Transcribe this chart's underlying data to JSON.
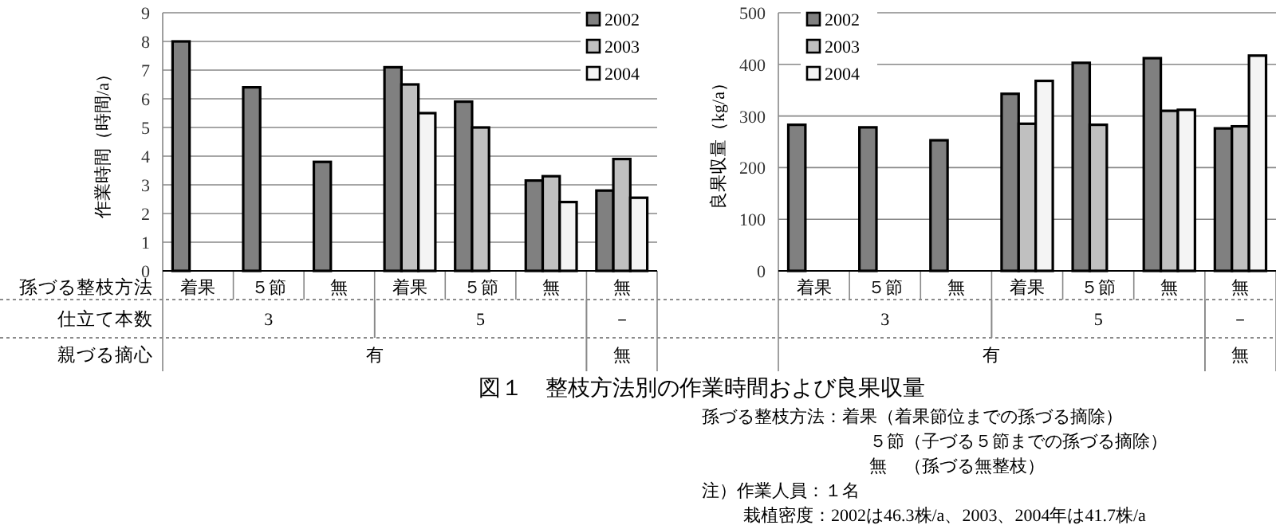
{
  "chart_data": [
    {
      "type": "bar",
      "title": "図１　整枝方法別の作業時間および良果収量",
      "ylabel": "作業時間（時間/a）",
      "xlabel": "孫づる整枝方法",
      "categories": [
        "着果",
        "５節",
        "無",
        "着果",
        "５節",
        "無",
        "無"
      ],
      "series": [
        {
          "name": "2002",
          "color": "#808080",
          "values": [
            8.0,
            6.4,
            3.8,
            7.1,
            5.9,
            3.15,
            2.8
          ]
        },
        {
          "name": "2003",
          "color": "#c0c0c0",
          "values": [
            null,
            null,
            null,
            6.5,
            5.0,
            3.3,
            3.9
          ]
        },
        {
          "name": "2004",
          "color": "#f4f4f4",
          "values": [
            null,
            null,
            null,
            5.5,
            null,
            2.4,
            2.55
          ]
        }
      ],
      "ylim": [
        0,
        9
      ],
      "yticks": [
        0,
        1,
        2,
        3,
        4,
        5,
        6,
        7,
        8,
        9
      ],
      "grid": "y",
      "legend": "top right",
      "annotations": [
        "仕立て本数",
        "親づる摘心",
        "3",
        "5",
        "－",
        "有",
        "無",
        "孫づる整枝方法：着果（着果節位までの孫づる摘除）",
        "５節（子づる５節までの孫づる摘除）",
        "無　（孫づる無整枝）",
        "注）作業人員：１名",
        "栽植密度：2002は46.3株/a、2003、2004年は41.7株/a"
      ]
    },
    {
      "type": "bar",
      "ylabel": "良果収量（kg/a）",
      "categories": [
        "着果",
        "５節",
        "無",
        "着果",
        "５節",
        "無",
        "無"
      ],
      "series": [
        {
          "name": "2002",
          "color": "#808080",
          "values": [
            283,
            278,
            253,
            343,
            403,
            412,
            276
          ]
        },
        {
          "name": "2003",
          "color": "#c0c0c0",
          "values": [
            null,
            null,
            null,
            285,
            283,
            310,
            280
          ]
        },
        {
          "name": "2004",
          "color": "#f4f4f4",
          "values": [
            null,
            null,
            null,
            368,
            null,
            312,
            417
          ]
        }
      ],
      "ylim": [
        0,
        500
      ],
      "yticks": [
        0,
        100,
        200,
        300,
        400,
        500
      ],
      "grid": "y",
      "legend": "top left",
      "annotations": [
        "3",
        "5",
        "－",
        "有",
        "無"
      ]
    }
  ]
}
